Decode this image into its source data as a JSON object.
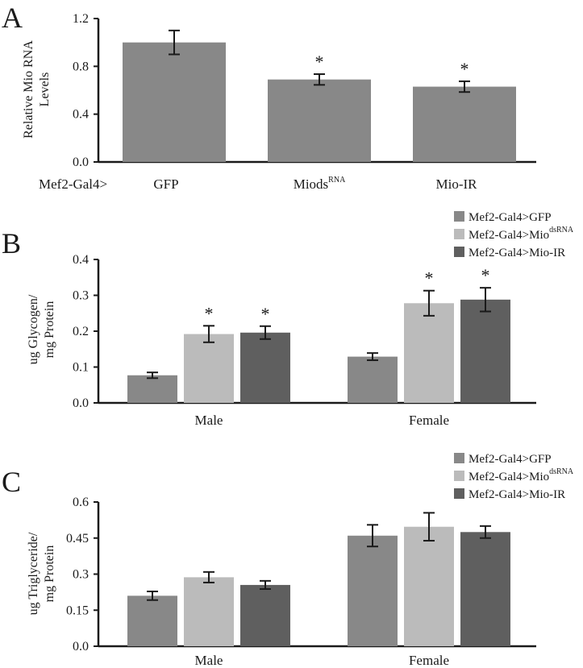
{
  "colors": {
    "gfp": "#888888",
    "miods": "#bbbbbb",
    "mioir": "#5f5f5f",
    "axis": "#1a1a1a"
  },
  "chart_data": [
    {
      "type": "bar",
      "panel_label": "A",
      "ylabel_lines": [
        "Relative Mio RNA",
        "Levels"
      ],
      "ylim": [
        0,
        1.2
      ],
      "yticks": [
        "0.0",
        "0.4",
        "0.8",
        "1.2"
      ],
      "ytick_values": [
        0,
        0.4,
        0.8,
        1.2
      ],
      "x_prefix": "Mef2-Gal4>",
      "categories": [
        {
          "label": "GFP",
          "sup": ""
        },
        {
          "label": "Miods",
          "sup": "RNA"
        },
        {
          "label": "Mio-IR",
          "sup": ""
        }
      ],
      "values": [
        1.0,
        0.69,
        0.63
      ],
      "errors": [
        0.1,
        0.045,
        0.045
      ],
      "significant": [
        false,
        true,
        true
      ],
      "sig_marker": "*"
    },
    {
      "type": "bar",
      "panel_label": "B",
      "ylabel_lines": [
        "ug Glycogen/",
        "mg Protein"
      ],
      "ylim": [
        0,
        0.4
      ],
      "yticks": [
        "0.0",
        "0.1",
        "0.2",
        "0.3",
        "0.4"
      ],
      "ytick_values": [
        0,
        0.1,
        0.2,
        0.3,
        0.4
      ],
      "categories": [
        "Male",
        "Female"
      ],
      "legend": [
        {
          "label": "Mef2-Gal4>GFP",
          "sup": ""
        },
        {
          "label": "Mef2-Gal4>Mio",
          "sup": "dsRNA"
        },
        {
          "label": "Mef2-Gal4>Mio-IR",
          "sup": ""
        }
      ],
      "series": [
        {
          "name": "Mef2-Gal4>GFP",
          "values": [
            0.077,
            0.129
          ],
          "errors": [
            0.008,
            0.01
          ],
          "significant": [
            false,
            false
          ]
        },
        {
          "name": "Mef2-Gal4>MiodsRNA",
          "values": [
            0.192,
            0.278
          ],
          "errors": [
            0.023,
            0.035
          ],
          "significant": [
            true,
            true
          ]
        },
        {
          "name": "Mef2-Gal4>Mio-IR",
          "values": [
            0.196,
            0.288
          ],
          "errors": [
            0.018,
            0.033
          ],
          "significant": [
            true,
            true
          ]
        }
      ],
      "sig_marker": "*"
    },
    {
      "type": "bar",
      "panel_label": "C",
      "ylabel_lines": [
        "ug Triglyceride/",
        "mg Protein"
      ],
      "ylim": [
        0,
        0.6
      ],
      "yticks": [
        "0.0",
        "0.15",
        "0.3",
        "0.45",
        "0.6"
      ],
      "ytick_values": [
        0,
        0.15,
        0.3,
        0.45,
        0.6
      ],
      "categories": [
        "Male",
        "Female"
      ],
      "legend": [
        {
          "label": "Mef2-Gal4>GFP",
          "sup": ""
        },
        {
          "label": "Mef2-Gal4>Mio",
          "sup": "dsRNA"
        },
        {
          "label": "Mef2-Gal4>Mio-IR",
          "sup": ""
        }
      ],
      "series": [
        {
          "name": "Mef2-Gal4>GFP",
          "values": [
            0.21,
            0.46
          ],
          "errors": [
            0.018,
            0.045
          ],
          "significant": [
            false,
            false
          ]
        },
        {
          "name": "Mef2-Gal4>MiodsRNA",
          "values": [
            0.287,
            0.497
          ],
          "errors": [
            0.022,
            0.058
          ],
          "significant": [
            false,
            false
          ]
        },
        {
          "name": "Mef2-Gal4>Mio-IR",
          "values": [
            0.255,
            0.475
          ],
          "errors": [
            0.017,
            0.025
          ],
          "significant": [
            false,
            false
          ]
        }
      ],
      "sig_marker": "*"
    }
  ]
}
